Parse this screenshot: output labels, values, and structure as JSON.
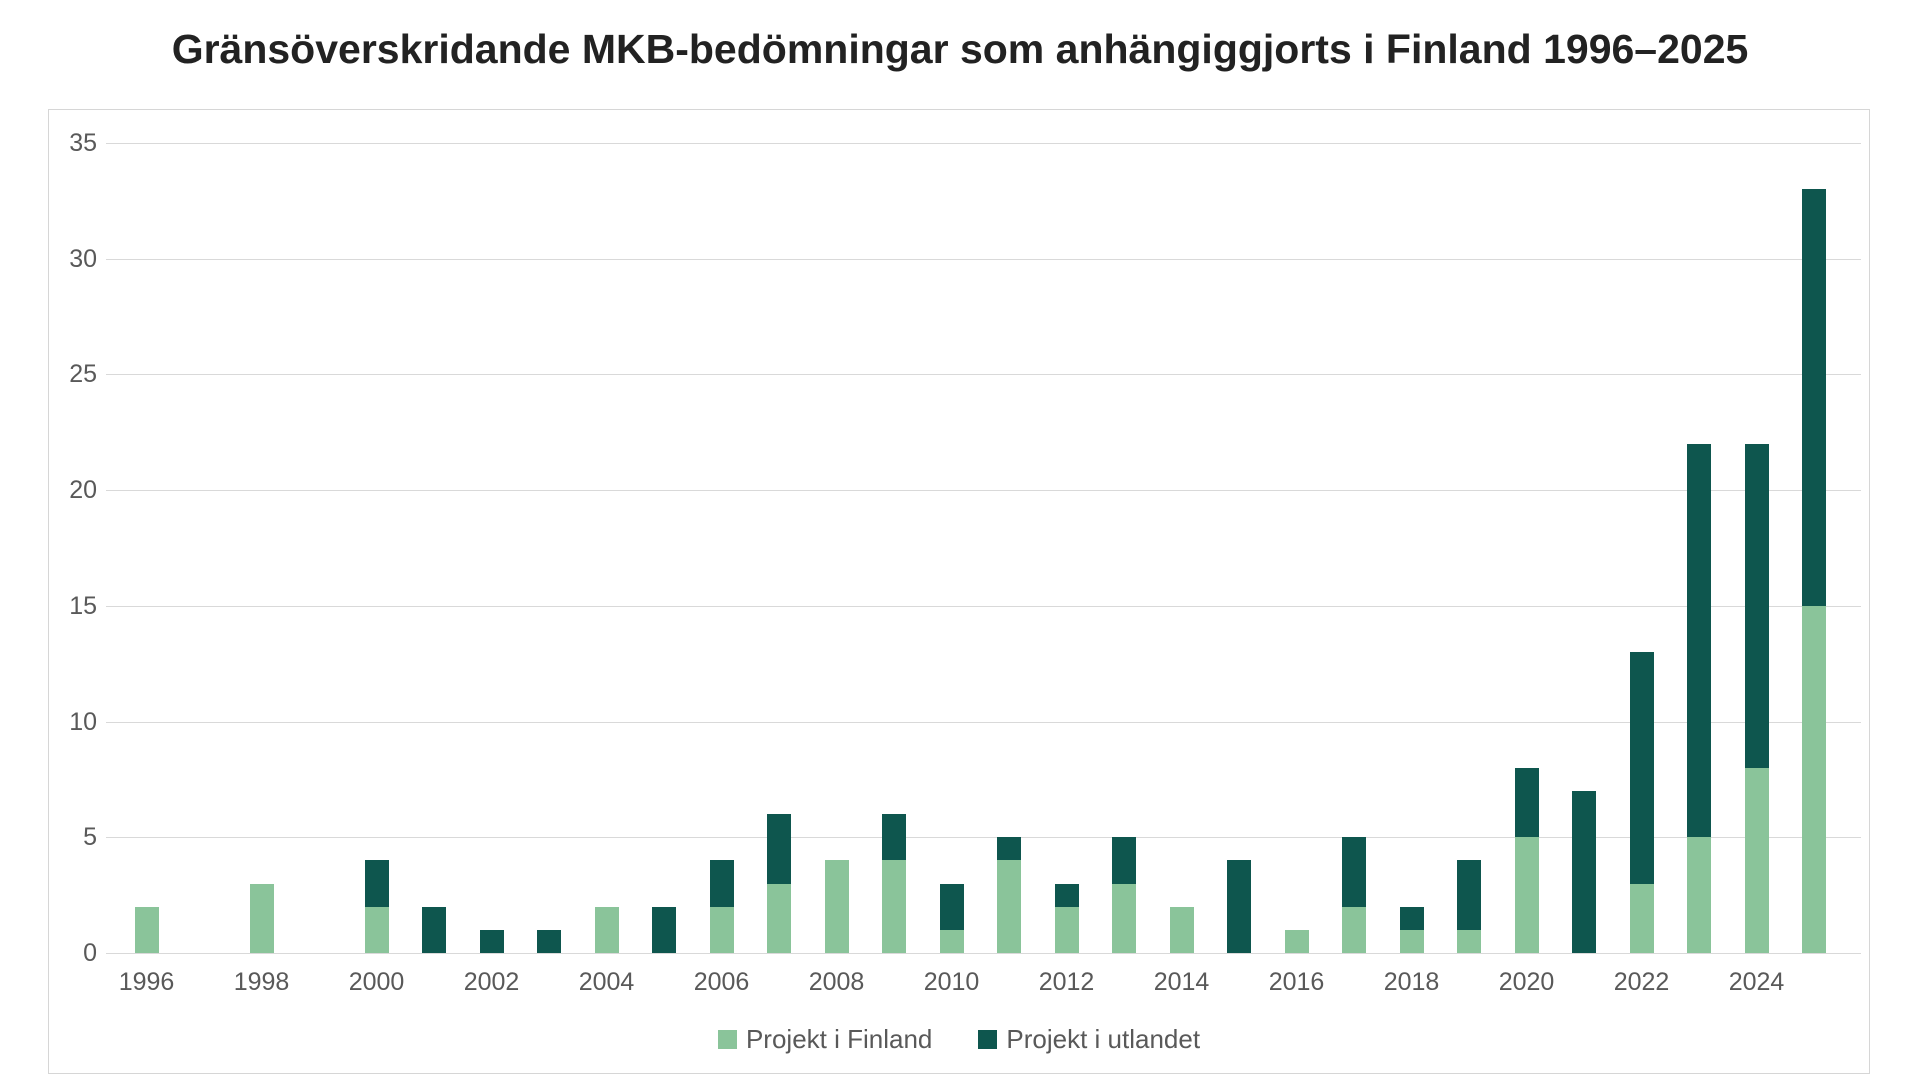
{
  "title": "Gränsöverskridande MKB-bedömningar som anhängiggjorts i Finland 1996–2025",
  "colors": {
    "finland_green": "#8AC49A",
    "utlandet_teal": "#0E564E",
    "gridline": "#D9D9D9",
    "chart_border": "#D6D6D6",
    "axis_text": "#595959",
    "title_text": "#222222",
    "background": "#FFFFFF"
  },
  "chart_data": {
    "type": "bar",
    "stacked": true,
    "title": "Gränsöverskridande MKB-bedömningar som anhängiggjorts i Finland 1996–2025",
    "xlabel": "",
    "ylabel": "",
    "ylim": [
      0,
      35
    ],
    "yticks": [
      0,
      5,
      10,
      15,
      20,
      25,
      30,
      35
    ],
    "grid": true,
    "legend_position": "bottom",
    "x": [
      1996,
      1997,
      1998,
      1999,
      2000,
      2001,
      2002,
      2003,
      2004,
      2005,
      2006,
      2007,
      2008,
      2009,
      2010,
      2011,
      2012,
      2013,
      2014,
      2015,
      2016,
      2017,
      2018,
      2019,
      2020,
      2021,
      2022,
      2023,
      2024,
      2025
    ],
    "x_tick_labels": [
      "1996",
      "1998",
      "2000",
      "2002",
      "2004",
      "2006",
      "2008",
      "2010",
      "2012",
      "2014",
      "2016",
      "2018",
      "2020",
      "2022",
      "2024"
    ],
    "series": [
      {
        "name": "Projekt i Finland",
        "color": "#8AC49A",
        "values": [
          2,
          0,
          3,
          0,
          2,
          0,
          0,
          0,
          2,
          0,
          2,
          3,
          4,
          4,
          1,
          4,
          2,
          3,
          2,
          0,
          1,
          2,
          1,
          1,
          5,
          0,
          3,
          5,
          8,
          15
        ]
      },
      {
        "name": "Projekt i utlandet",
        "color": "#0E564E",
        "values": [
          0,
          0,
          0,
          0,
          2,
          2,
          1,
          1,
          0,
          2,
          2,
          3,
          0,
          2,
          2,
          1,
          1,
          2,
          0,
          4,
          0,
          3,
          1,
          3,
          3,
          7,
          10,
          17,
          14,
          18
        ]
      }
    ]
  },
  "legend": {
    "items": [
      {
        "label": "Projekt i Finland",
        "color": "#8AC49A"
      },
      {
        "label": "Projekt i utlandet",
        "color": "#0E564E"
      }
    ]
  }
}
